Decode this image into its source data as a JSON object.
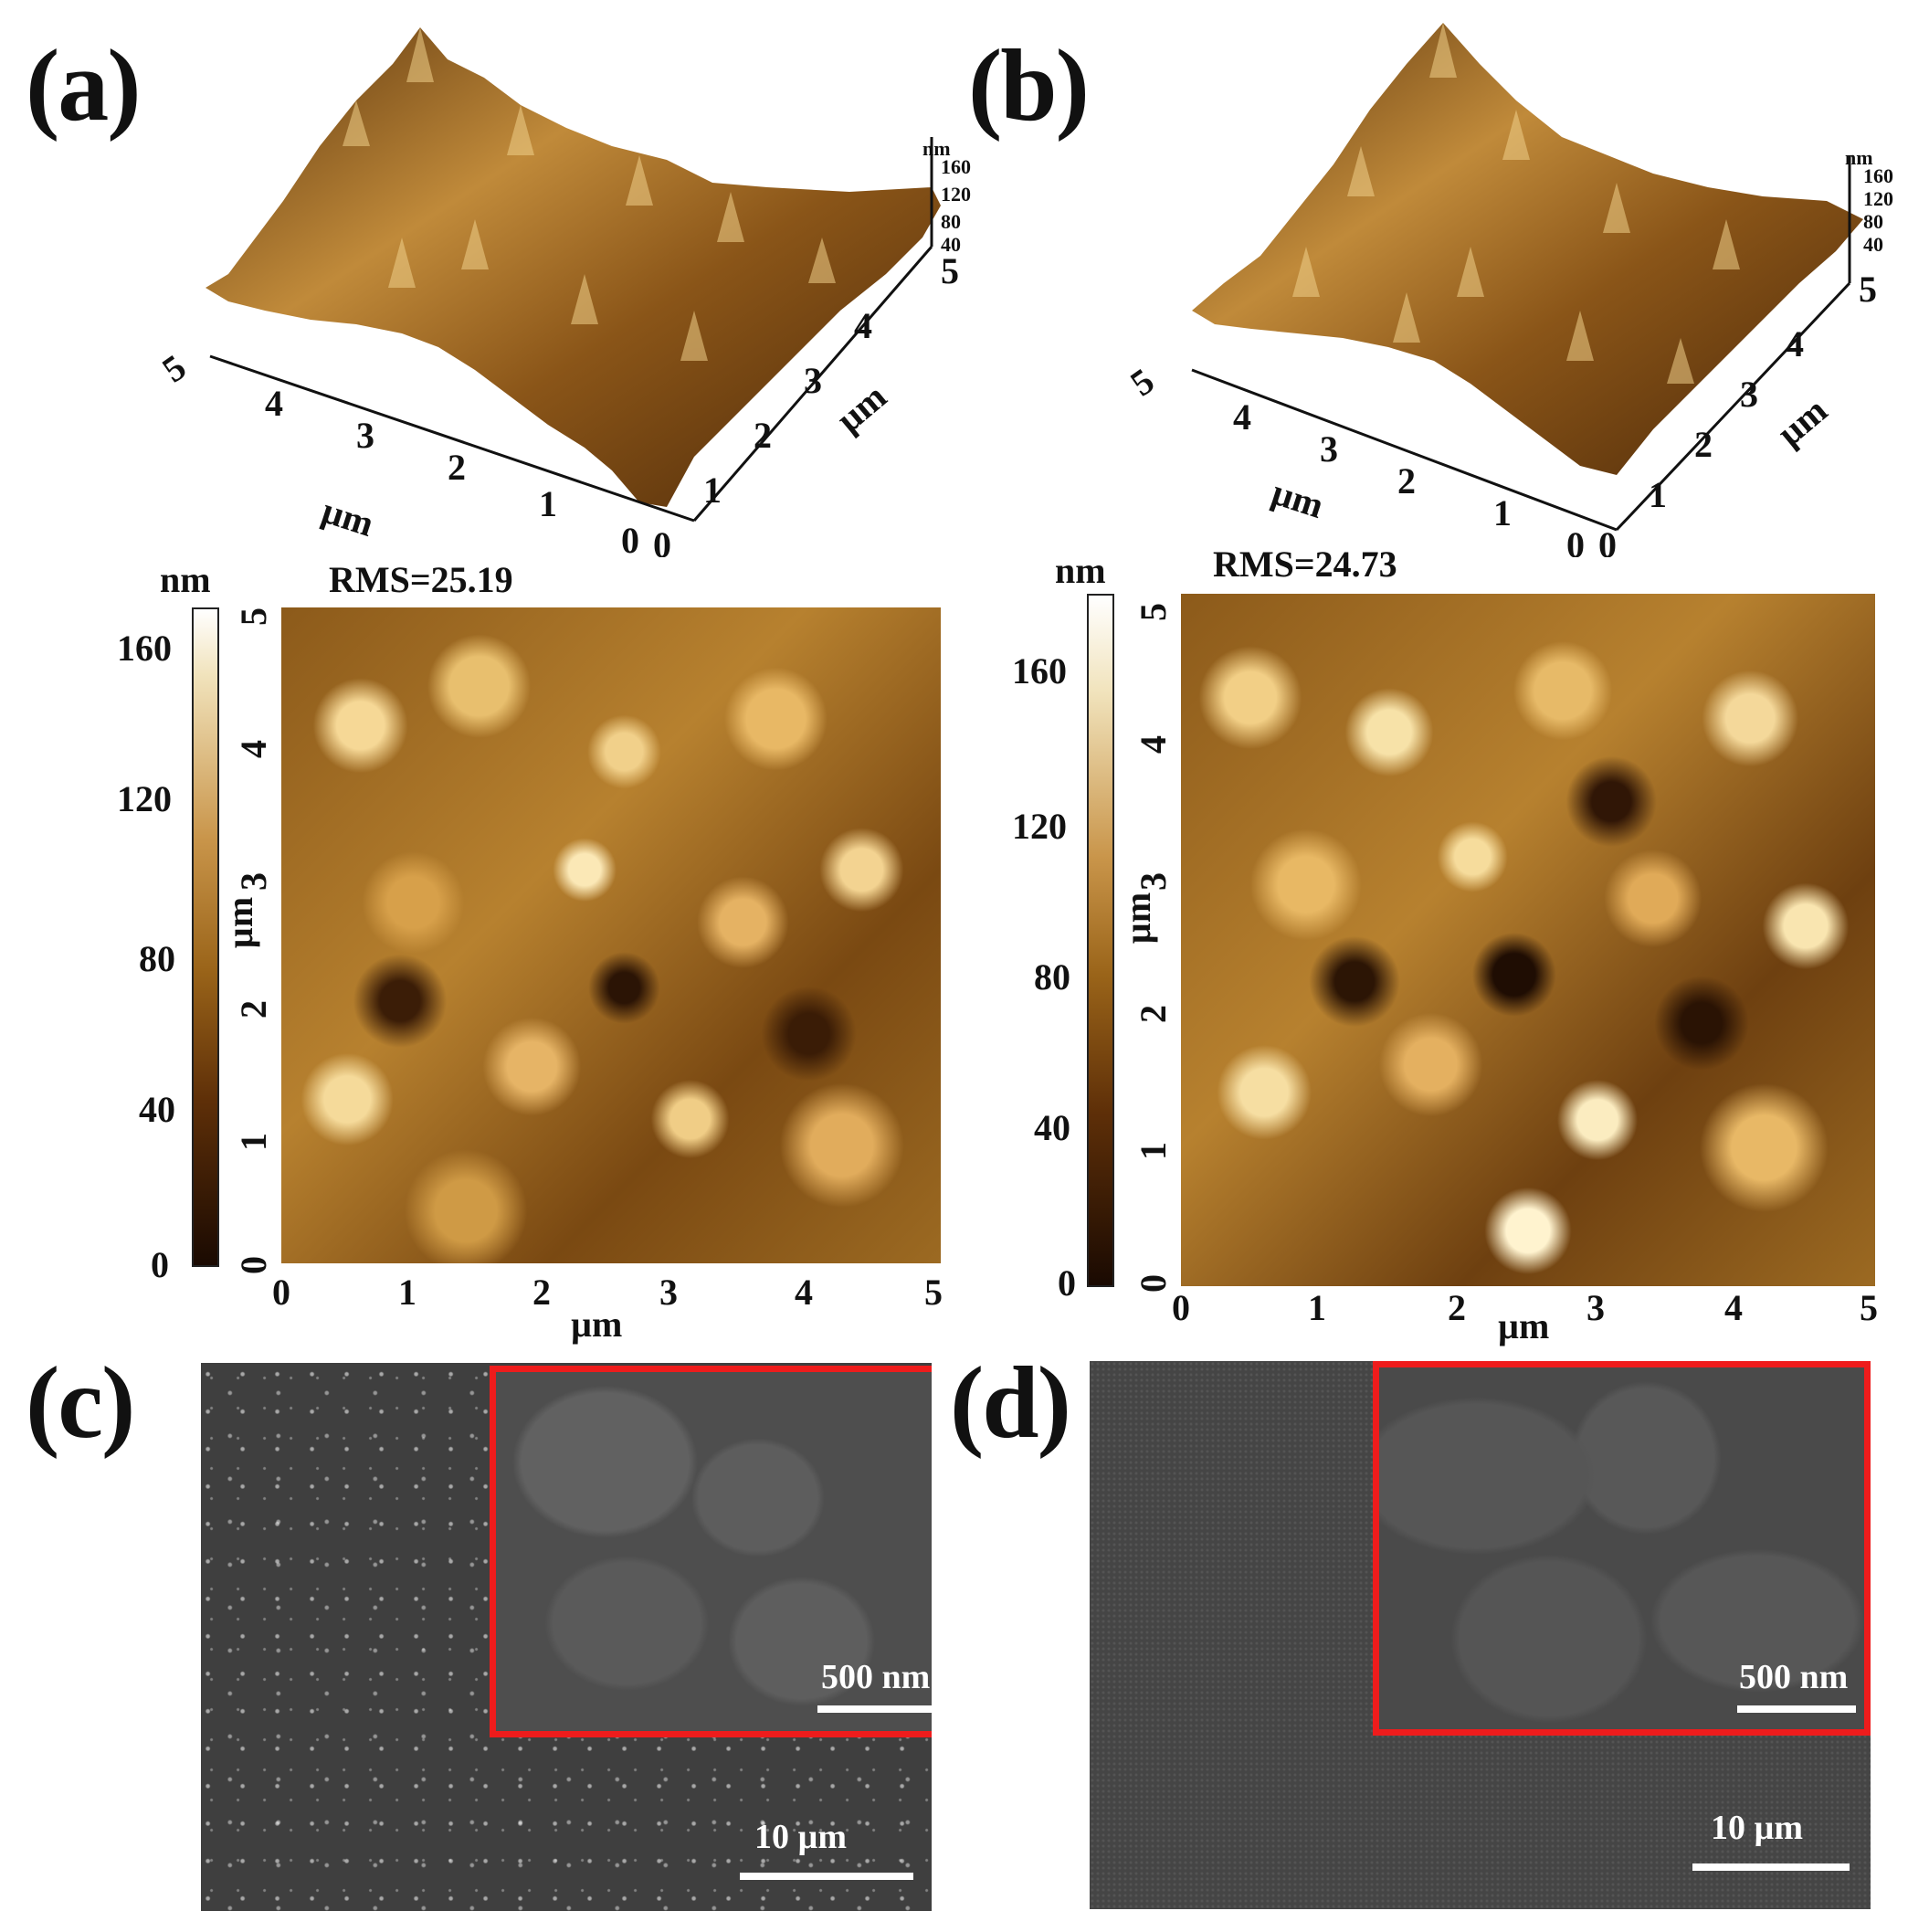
{
  "panels": {
    "a": {
      "letter": "(a)",
      "surface_ticks": [
        "5",
        "4",
        "3",
        "2",
        "1",
        "0"
      ],
      "depth_ticks": [
        "0",
        "1",
        "2",
        "3",
        "4",
        "5"
      ],
      "axis_unit": "µm",
      "z_unit": "nm",
      "z_ticks": [
        "160",
        "120",
        "80",
        "40"
      ],
      "rms": "RMS=25.19",
      "colorbar_unit": "nm",
      "colorbar_ticks": [
        "160",
        "120",
        "80",
        "40",
        "0"
      ],
      "map_x_ticks": [
        "0",
        "1",
        "2",
        "3",
        "4",
        "5"
      ],
      "map_y_ticks": [
        "5",
        "4",
        "3",
        "2",
        "1",
        "0"
      ],
      "map_x_unit": "µm",
      "map_y_unit": "µm"
    },
    "b": {
      "letter": "(b)",
      "surface_ticks": [
        "5",
        "4",
        "3",
        "2",
        "1",
        "0"
      ],
      "depth_ticks": [
        "0",
        "1",
        "2",
        "3",
        "4",
        "5"
      ],
      "axis_unit": "µm",
      "z_unit": "nm",
      "z_ticks": [
        "160",
        "120",
        "80",
        "40"
      ],
      "rms": "RMS=24.73",
      "colorbar_unit": "nm",
      "colorbar_ticks": [
        "160",
        "120",
        "80",
        "40",
        "0"
      ],
      "map_x_ticks": [
        "0",
        "1",
        "2",
        "3",
        "4",
        "5"
      ],
      "map_y_ticks": [
        "5",
        "4",
        "3",
        "2",
        "1",
        "0"
      ],
      "map_x_unit": "µm",
      "map_y_unit": "µm"
    },
    "c": {
      "letter": "(c)",
      "main_scale": "10 µm",
      "inset_scale": "500 nm"
    },
    "d": {
      "letter": "(d)",
      "main_scale": "10 µm",
      "inset_scale": "500 nm"
    }
  },
  "colors": {
    "inset_border": "#ee1c1c",
    "afm_dark": "#2a1405",
    "afm_mid": "#a06a1e",
    "afm_light": "#f4e2b4",
    "sem_gray": "#4a4a4a"
  }
}
